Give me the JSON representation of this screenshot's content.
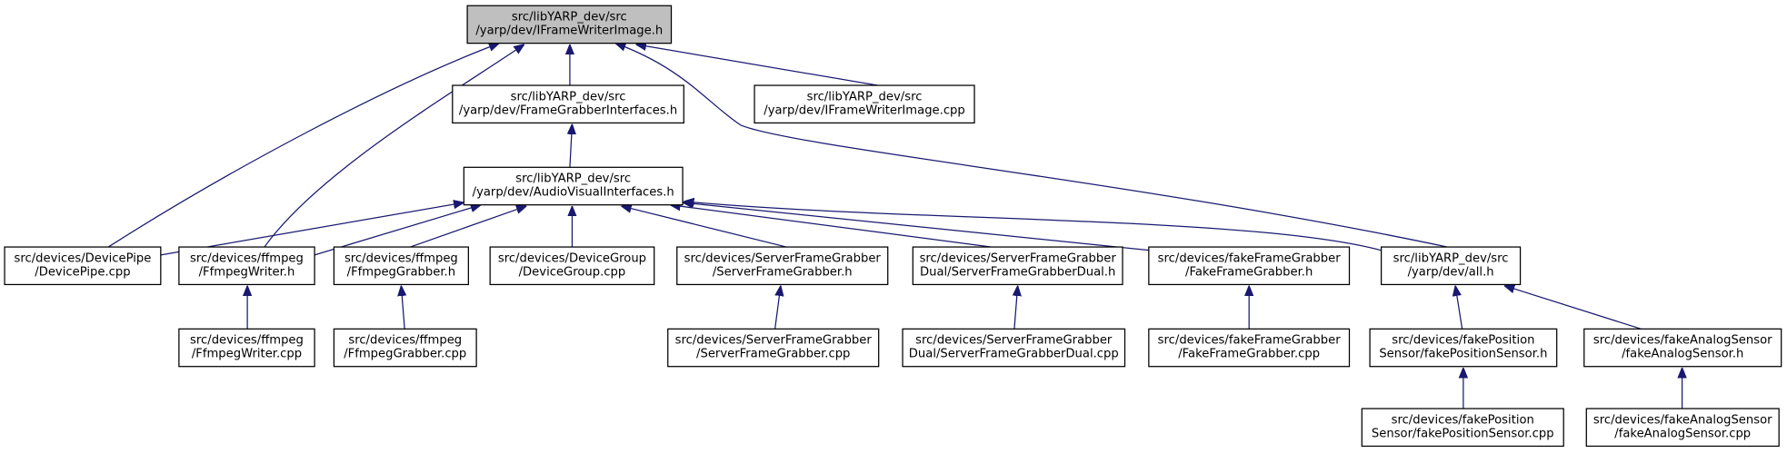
{
  "nodes": [
    {
      "lines": [
        "src/libYARP_dev/src",
        "/yarp/dev/IFrameWriterImage.h"
      ]
    },
    {
      "lines": [
        "src/libYARP_dev/src",
        "/yarp/dev/FrameGrabberInterfaces.h"
      ]
    },
    {
      "lines": [
        "src/libYARP_dev/src",
        "/yarp/dev/IFrameWriterImage.cpp"
      ]
    },
    {
      "lines": [
        "src/libYARP_dev/src",
        "/yarp/dev/AudioVisualInterfaces.h"
      ]
    },
    {
      "lines": [
        "src/devices/DevicePipe",
        "/DevicePipe.cpp"
      ]
    },
    {
      "lines": [
        "src/devices/ffmpeg",
        "/FfmpegWriter.h"
      ]
    },
    {
      "lines": [
        "src/devices/ffmpeg",
        "/FfmpegGrabber.h"
      ]
    },
    {
      "lines": [
        "src/devices/DeviceGroup",
        "/DeviceGroup.cpp"
      ]
    },
    {
      "lines": [
        "src/devices/ServerFrameGrabber",
        "/ServerFrameGrabber.h"
      ]
    },
    {
      "lines": [
        "src/devices/ServerFrameGrabber",
        "Dual/ServerFrameGrabberDual.h"
      ]
    },
    {
      "lines": [
        "src/devices/fakeFrameGrabber",
        "/FakeFrameGrabber.h"
      ]
    },
    {
      "lines": [
        "src/libYARP_dev/src",
        "/yarp/dev/all.h"
      ]
    },
    {
      "lines": [
        "src/devices/ffmpeg",
        "/FfmpegWriter.cpp"
      ]
    },
    {
      "lines": [
        "src/devices/ffmpeg",
        "/FfmpegGrabber.cpp"
      ]
    },
    {
      "lines": [
        "src/devices/ServerFrameGrabber",
        "/ServerFrameGrabber.cpp"
      ]
    },
    {
      "lines": [
        "src/devices/ServerFrameGrabber",
        "Dual/ServerFrameGrabberDual.cpp"
      ]
    },
    {
      "lines": [
        "src/devices/fakeFrameGrabber",
        "/FakeFrameGrabber.cpp"
      ]
    },
    {
      "lines": [
        "src/devices/fakePosition",
        "Sensor/fakePositionSensor.h"
      ]
    },
    {
      "lines": [
        "src/devices/fakeAnalogSensor",
        "/fakeAnalogSensor.h"
      ]
    },
    {
      "lines": [
        "src/devices/fakePosition",
        "Sensor/fakePositionSensor.cpp"
      ]
    },
    {
      "lines": [
        "src/devices/fakeAnalogSensor",
        "/fakeAnalogSensor.cpp"
      ]
    }
  ]
}
